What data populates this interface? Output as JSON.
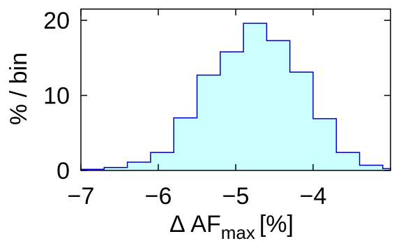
{
  "chart_data": {
    "type": "bar",
    "xlabel": "Δ AF",
    "xlabel_subscript": "max",
    "xlabel_unit": "[%]",
    "ylabel": "% / bin",
    "xlim": [
      -7.0,
      -3.0
    ],
    "ylim": [
      0,
      21.5
    ],
    "x_ticks": [
      -7,
      -6,
      -5,
      -4
    ],
    "x_tick_labels": [
      "−7",
      "−6",
      "−5",
      "−4"
    ],
    "y_ticks": [
      0,
      10,
      20
    ],
    "y_tick_labels": [
      "0",
      "10",
      "20"
    ],
    "grid": false,
    "bin_edges": [
      -7.0,
      -6.7,
      -6.4,
      -6.1,
      -5.8,
      -5.5,
      -5.2,
      -4.9,
      -4.6,
      -4.3,
      -4.0,
      -3.7,
      -3.4,
      -3.1,
      -3.0
    ],
    "values": [
      0.15,
      0.4,
      1.1,
      2.4,
      7.0,
      12.7,
      15.8,
      19.6,
      17.3,
      13.1,
      6.9,
      2.4,
      0.7,
      0.25
    ],
    "fill_color": "#ccffff",
    "line_color": "#0000cc"
  }
}
